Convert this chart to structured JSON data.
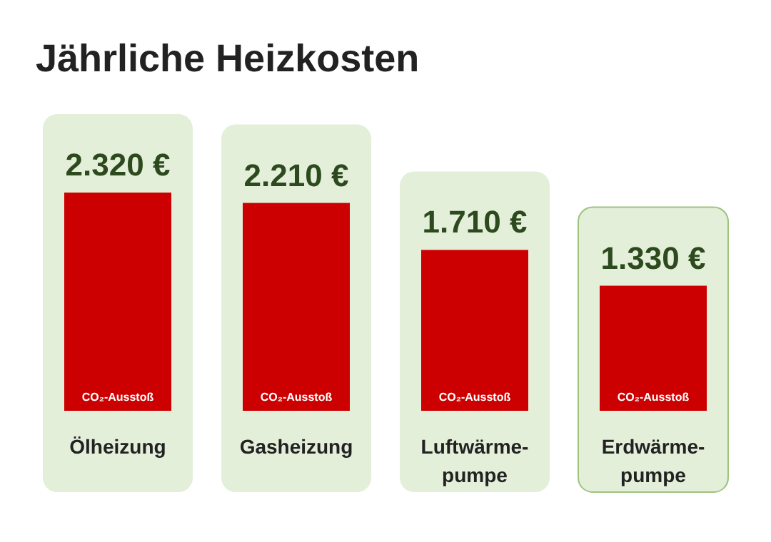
{
  "chart_data": {
    "type": "bar",
    "title": "Jährliche Heizkosten",
    "categories": [
      "Ölheizung",
      "Gasheizung",
      "Luftwärme-pumpe",
      "Erdwärme-pumpe"
    ],
    "values": [
      2320,
      2210,
      1710,
      1330
    ],
    "value_labels": [
      "2.320 €",
      "2.210 €",
      "1.710 €",
      "1.330 €"
    ],
    "color": "#cc0000",
    "annotations": [
      {
        "text": "CO₂-Ausstoß",
        "x": "Ölheizung",
        "y": 0
      },
      {
        "text": "CO₂-Ausstoß",
        "x": "Gasheizung",
        "y": 0
      },
      {
        "text": "CO₂-Ausstoß",
        "x": "Luftwärme-pumpe",
        "y": 0
      },
      {
        "text": "CO₂-Ausstoß",
        "x": "Erdwärme-pumpe",
        "y": 0
      }
    ]
  }
}
